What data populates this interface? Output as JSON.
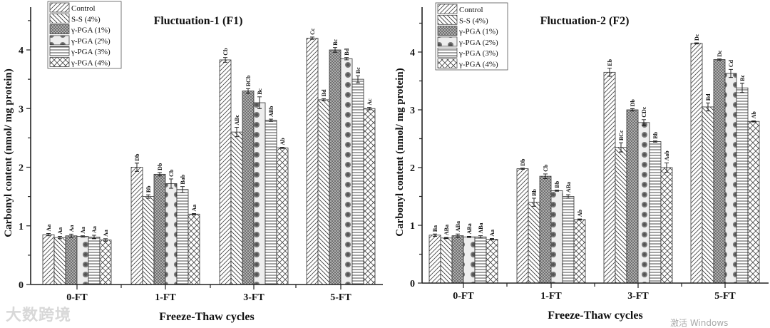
{
  "chart_data": [
    {
      "type": "bar",
      "title": "Fluctuation-1 (F1)",
      "xlabel": "Freeze-Thaw cycles",
      "ylabel": "Carbonyl content (nmol/ mg protein)",
      "ylim": [
        0,
        4.7
      ],
      "yticks": [
        0,
        1,
        2,
        3,
        4
      ],
      "legend_position": "top-left",
      "categories": [
        "0-FT",
        "1-FT",
        "3-FT",
        "5-FT"
      ],
      "series": [
        {
          "name": "Control",
          "values": [
            0.85,
            2.0,
            3.83,
            4.2
          ],
          "errors": [
            0.02,
            0.07,
            0.04,
            0.02
          ],
          "labels": [
            "Aa",
            "Db",
            "Cb",
            "Cc"
          ]
        },
        {
          "name": "S-S (4%)",
          "values": [
            0.8,
            1.5,
            2.6,
            3.15
          ],
          "errors": [
            0.02,
            0.03,
            0.08,
            0.02
          ],
          "labels": [
            "Aa",
            "Bb",
            "ABc",
            "Bd"
          ]
        },
        {
          "name": "γ-PGA (1%)",
          "values": [
            0.83,
            1.88,
            3.3,
            4.0
          ],
          "errors": [
            0.03,
            0.03,
            0.04,
            0.04
          ],
          "labels": [
            "Aa",
            "Db",
            "BCb",
            "Bc"
          ]
        },
        {
          "name": "γ-PGA (2%)",
          "values": [
            0.82,
            1.72,
            3.1,
            3.85
          ],
          "errors": [
            0.01,
            0.08,
            0.1,
            0.02
          ],
          "labels": [
            "Aa",
            "Cb",
            "Bc",
            "Bd"
          ]
        },
        {
          "name": "γ-PGA (3%)",
          "values": [
            0.81,
            1.62,
            2.8,
            3.5
          ],
          "errors": [
            0.03,
            0.05,
            0.02,
            0.06
          ],
          "labels": [
            "Aa",
            "Bab",
            "ABb",
            "Bc"
          ]
        },
        {
          "name": "γ-PGA (4%)",
          "values": [
            0.76,
            1.2,
            2.33,
            3.0
          ],
          "errors": [
            0.02,
            0.01,
            0.01,
            0.02
          ],
          "labels": [
            "Aa",
            "Aa",
            "Ab",
            "Ac"
          ]
        }
      ]
    },
    {
      "type": "bar",
      "title": "Fluctuation-2 (F2)",
      "xlabel": "Freeze-Thaw cycles",
      "ylabel": "Carbonyl content (nmol/ mg protein)",
      "ylim": [
        0,
        4.7
      ],
      "yticks": [
        0,
        1,
        2,
        3,
        4
      ],
      "legend_position": "top-left",
      "categories": [
        "0-FT",
        "1-FT",
        "3-FT",
        "5-FT"
      ],
      "series": [
        {
          "name": "Control",
          "values": [
            0.83,
            1.98,
            3.65,
            4.15
          ],
          "errors": [
            0.02,
            0.01,
            0.07,
            0.01
          ],
          "labels": [
            "Ba",
            "Db",
            "Eb",
            "Dc"
          ]
        },
        {
          "name": "S-S (4%)",
          "values": [
            0.78,
            1.4,
            2.35,
            3.05
          ],
          "errors": [
            0.01,
            0.07,
            0.08,
            0.07
          ],
          "labels": [
            "ABa",
            "Bb",
            "BCc",
            "Bd"
          ]
        },
        {
          "name": "γ-PGA (1%)",
          "values": [
            0.82,
            1.85,
            3.0,
            3.87
          ],
          "errors": [
            0.03,
            0.04,
            0.02,
            0.01
          ],
          "labels": [
            "ABa",
            "Cb",
            "Db",
            "Dc"
          ]
        },
        {
          "name": "γ-PGA (2%)",
          "values": [
            0.8,
            1.6,
            2.78,
            3.63
          ],
          "errors": [
            0.01,
            0.01,
            0.05,
            0.07
          ],
          "labels": [
            "ABa",
            "Bb",
            "CDc",
            "Cd"
          ]
        },
        {
          "name": "γ-PGA (3%)",
          "values": [
            0.8,
            1.5,
            2.45,
            3.38
          ],
          "errors": [
            0.02,
            0.03,
            0.01,
            0.08
          ],
          "labels": [
            "ABa",
            "ABa",
            "Bb",
            "Bc"
          ]
        },
        {
          "name": "γ-PGA (4%)",
          "values": [
            0.76,
            1.1,
            2.0,
            2.8
          ],
          "errors": [
            0.01,
            0.01,
            0.08,
            0.01
          ],
          "labels": [
            "Aa",
            "Ab",
            "Aab",
            "Ab"
          ]
        }
      ]
    }
  ],
  "watermarks": {
    "logo": "大数跨境",
    "os_notice": "激活 Windows"
  }
}
